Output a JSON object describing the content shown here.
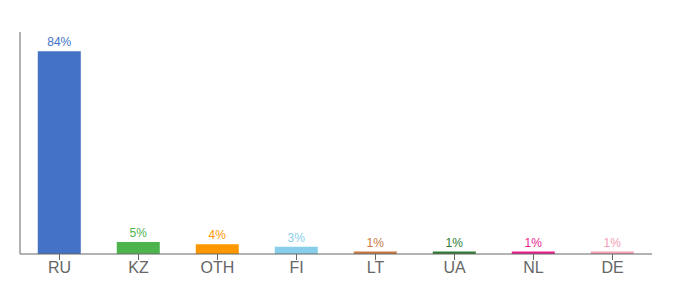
{
  "chart_data": {
    "type": "bar",
    "categories": [
      "RU",
      "KZ",
      "OTH",
      "FI",
      "LT",
      "UA",
      "NL",
      "DE"
    ],
    "values": [
      84,
      5,
      4,
      3,
      1,
      1,
      1,
      1
    ],
    "value_labels": [
      "84%",
      "5%",
      "4%",
      "3%",
      "1%",
      "1%",
      "1%",
      "1%"
    ],
    "colors": [
      "#4472c4",
      "#4db34d",
      "#ff9800",
      "#87ceeb",
      "#c87941",
      "#2e7d32",
      "#e91e8c",
      "#f4a0b5"
    ],
    "ylim": [
      0,
      92
    ],
    "grid": false,
    "data_labels": true,
    "tick_labels": "x"
  }
}
